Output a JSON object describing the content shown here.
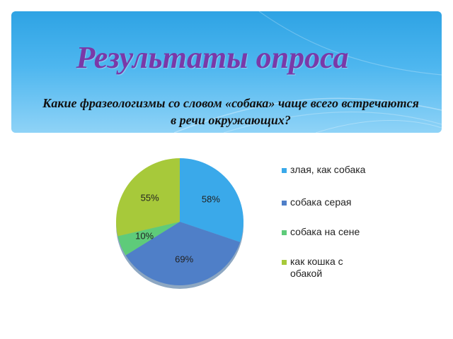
{
  "slide": {
    "title": "Результаты опроса",
    "subtitle": "Какие фразеологизмы со словом «собака» чаще всего встречаются в речи окружающих?"
  },
  "chart_data": {
    "type": "pie",
    "title": "",
    "legend_position": "right",
    "categories": [
      "злая, как собака",
      "собака серая",
      "собака на сене",
      "как кошка с обакой"
    ],
    "values": [
      58,
      69,
      10,
      55
    ],
    "data_labels": [
      "58%",
      "69%",
      "10%",
      "55%"
    ],
    "colors": [
      "#3aa9ea",
      "#4f7fc8",
      "#5ecb7a",
      "#a7c93a"
    ]
  }
}
